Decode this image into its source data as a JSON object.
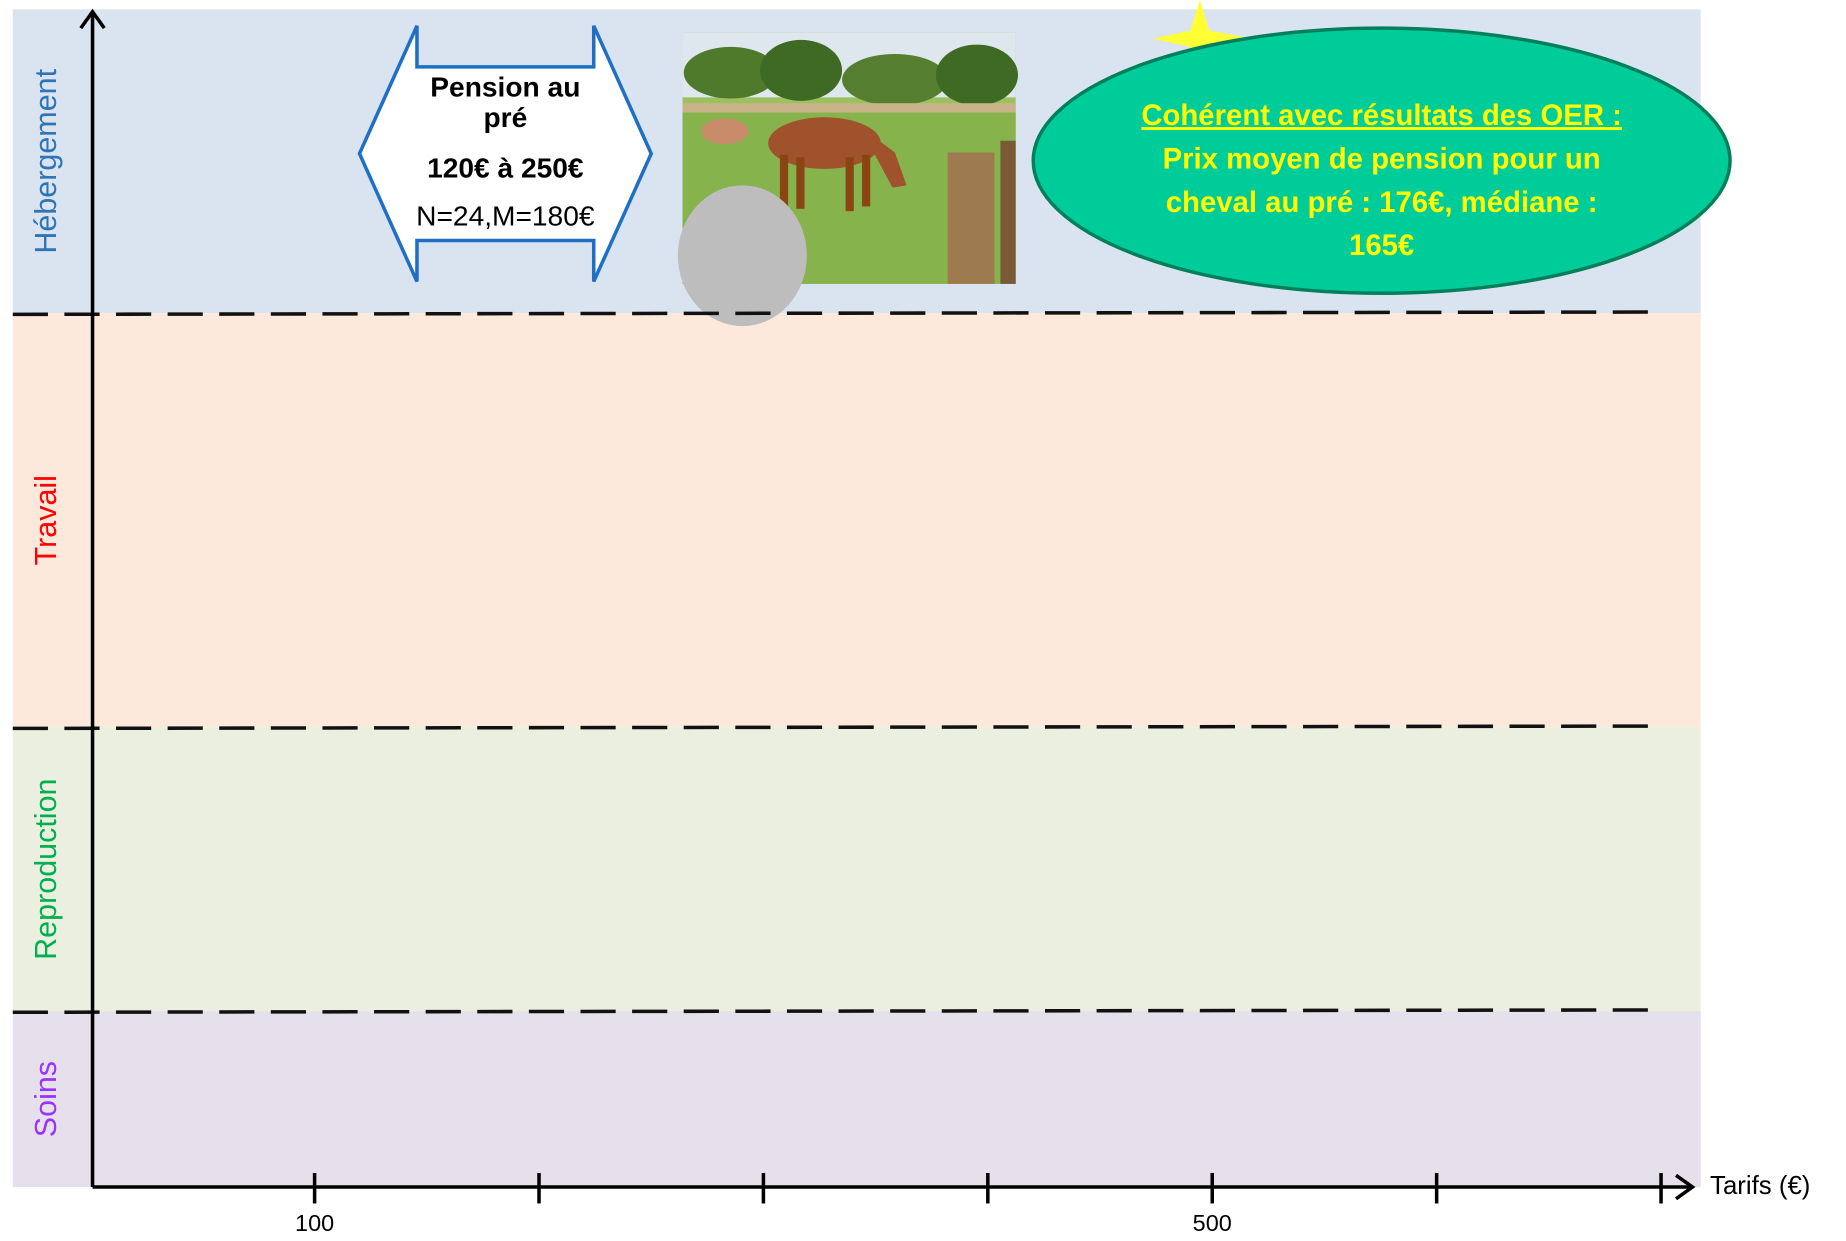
{
  "chart_data": {
    "type": "range",
    "categories": [
      "Hébergement",
      "Travail",
      "Reproduction",
      "Soins"
    ],
    "category_colors": [
      "#2e75b6",
      "#ff0000",
      "#00b050",
      "#9933ff"
    ],
    "band_colors": [
      "#dae3f0",
      "#fde9db",
      "#ebefe0",
      "#e5e0ec"
    ],
    "xlabel": "Tarifs (€)",
    "xlim": [
      0,
      714
    ],
    "xticks": [
      100,
      {
        "value": 200,
        "label": null
      },
      {
        "value": 300,
        "label": null
      },
      {
        "value": 400,
        "label": null
      },
      500,
      {
        "value": 600,
        "label": null
      },
      {
        "value": 700,
        "label": null
      }
    ],
    "ranges": [
      {
        "category": 0,
        "low": 120,
        "high": 250,
        "color": "#1f6fc5",
        "title_lines": [
          "Pension au",
          "pré"
        ],
        "range_label": "120€ à 250€",
        "stats": "N=24,M=180€"
      }
    ],
    "annotation": {
      "lines": [
        "Cohérent avec résultats des OER :",
        "Prix moyen de pension pour un",
        "cheval au pré : 176€, médiane :",
        "165€"
      ],
      "fill": "#00cc99",
      "text_color": "#ffff00"
    }
  }
}
